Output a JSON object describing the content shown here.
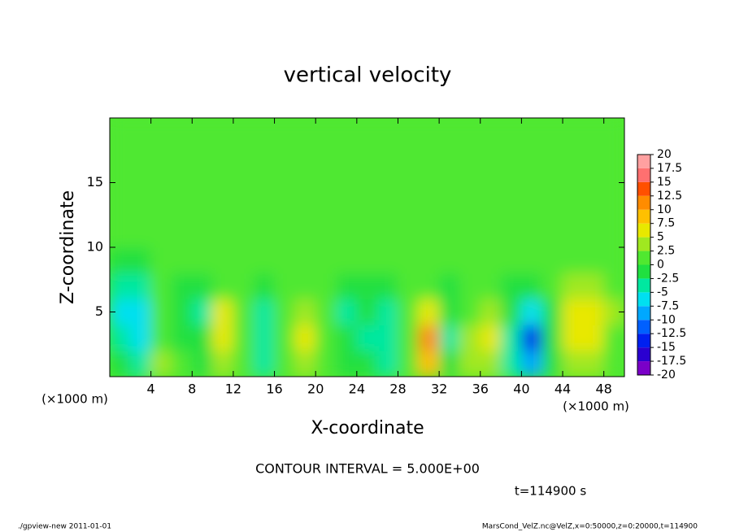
{
  "chart_data": {
    "type": "heatmap",
    "title": "vertical velocity",
    "xlabel": "X-coordinate",
    "ylabel": "Z-coordinate",
    "x_unit": "(×1000 m)",
    "contour_note": "CONTOUR INTERVAL = 5.000E+00",
    "time_note": "t=114900 s",
    "footer_left": "./gpview-new  2011-01-01",
    "footer_right": "MarsCond_VelZ.nc@VelZ,x=0:50000,z=0:20000,t=114900",
    "xlim": [
      0,
      50
    ],
    "ylim": [
      0,
      20
    ],
    "xticks": [
      4,
      8,
      12,
      16,
      20,
      24,
      28,
      32,
      36,
      40,
      44,
      48
    ],
    "yticks": [
      5,
      10,
      15
    ],
    "x": [
      1,
      3,
      5,
      7,
      9,
      11,
      13,
      15,
      17,
      19,
      21,
      23,
      25,
      27,
      29,
      31,
      33,
      35,
      37,
      39,
      41,
      43,
      45,
      47,
      49
    ],
    "y": [
      1,
      3,
      5,
      7,
      9,
      11,
      13,
      15,
      17,
      19
    ],
    "values": [
      [
        -2,
        -3,
        3,
        1,
        -1,
        4,
        1,
        -3,
        0,
        4,
        2,
        -1,
        -2,
        -4,
        0,
        9,
        -2,
        3,
        3,
        -3,
        -10,
        -1,
        3,
        3,
        1
      ],
      [
        -5,
        -6,
        1,
        -1,
        -2,
        6,
        1,
        -5,
        0,
        5,
        2,
        -2,
        -3,
        -5,
        1,
        12,
        -3,
        4,
        6,
        -3,
        -13,
        -2,
        5,
        6,
        2
      ],
      [
        -6,
        -7,
        0,
        -2,
        -3,
        5,
        0,
        -3,
        0,
        3,
        1,
        -3,
        -2,
        -3,
        1,
        6,
        -2,
        2,
        3,
        -2,
        -6,
        -1,
        6,
        7,
        3
      ],
      [
        -4,
        -4,
        0,
        -1,
        -1,
        2,
        1,
        -1,
        0,
        1,
        1,
        -1,
        -1,
        -1,
        1,
        2,
        -1,
        1,
        1,
        -1,
        -2,
        1,
        4,
        4,
        2
      ],
      [
        -1,
        -1,
        0,
        0,
        0,
        1,
        1,
        0,
        0,
        1,
        1,
        0,
        0,
        0,
        1,
        1,
        0,
        0,
        1,
        0,
        0,
        1,
        2,
        2,
        2
      ],
      [
        0,
        0,
        1,
        0,
        1,
        1,
        1,
        1,
        1,
        1,
        1,
        1,
        1,
        1,
        1,
        1,
        1,
        1,
        1,
        1,
        1,
        1,
        2,
        2,
        2
      ],
      [
        1,
        1,
        1,
        0,
        1,
        1,
        1,
        1,
        1,
        1,
        1,
        1,
        1,
        1,
        1,
        1,
        1,
        1,
        1,
        1,
        1,
        1,
        1,
        1,
        1
      ],
      [
        1,
        1,
        1,
        1,
        1,
        1,
        1,
        1,
        1,
        1,
        1,
        1,
        1,
        1,
        1,
        1,
        1,
        1,
        1,
        1,
        1,
        1,
        1,
        1,
        1
      ],
      [
        1,
        1,
        1,
        1,
        1,
        1,
        1,
        1,
        1,
        1,
        1,
        1,
        1,
        1,
        1,
        1,
        1,
        1,
        1,
        1,
        1,
        1,
        1,
        1,
        1
      ],
      [
        1,
        1,
        1,
        1,
        1,
        1,
        1,
        1,
        1,
        1,
        1,
        1,
        1,
        1,
        1,
        1,
        1,
        1,
        1,
        1,
        1,
        1,
        1,
        1,
        1
      ]
    ],
    "levels": [
      -20,
      -17.5,
      -15,
      -12.5,
      -10,
      -7.5,
      -5,
      -2.5,
      0,
      2.5,
      5,
      7.5,
      10,
      12.5,
      15,
      17.5,
      20
    ],
    "level_colors": [
      "#7a00c8",
      "#2a00d0",
      "#0020f0",
      "#0060ff",
      "#00a8ff",
      "#00e0f0",
      "#00e8a0",
      "#20e040",
      "#50e830",
      "#a0e820",
      "#e8e800",
      "#ffc000",
      "#ff8c00",
      "#ff5000",
      "#ff7070",
      "#ffa0a0"
    ]
  }
}
